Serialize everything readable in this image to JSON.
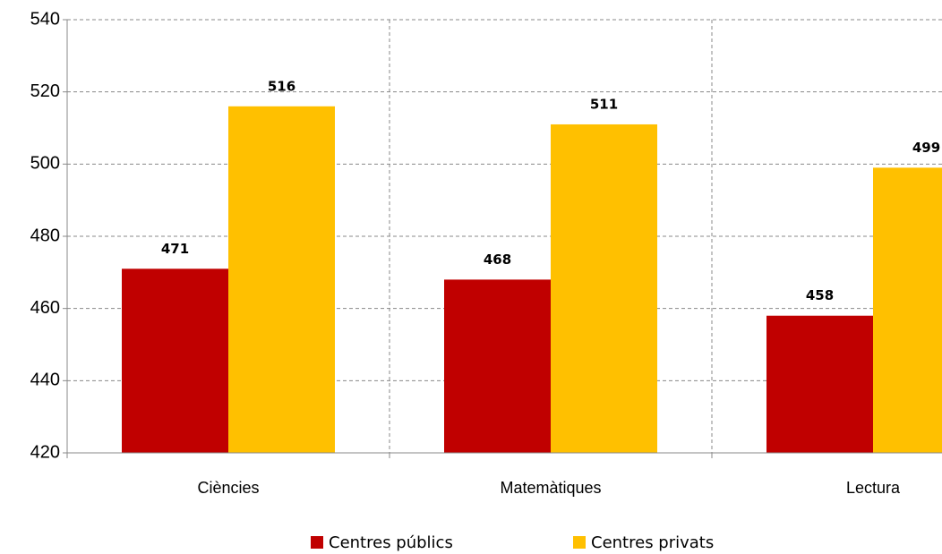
{
  "chart_data": {
    "type": "bar",
    "categories": [
      "Ciències",
      "Matemàtiques",
      "Lectura"
    ],
    "series": [
      {
        "name": "Centres públics",
        "color": "#c00000",
        "values": [
          471,
          468,
          458
        ]
      },
      {
        "name": "Centres privats",
        "color": "#ffc000",
        "values": [
          516,
          511,
          499
        ]
      }
    ],
    "ylim": [
      420,
      540
    ],
    "yticks": [
      420,
      440,
      460,
      480,
      500,
      520,
      540
    ],
    "grid": true,
    "legend": "bottom"
  }
}
